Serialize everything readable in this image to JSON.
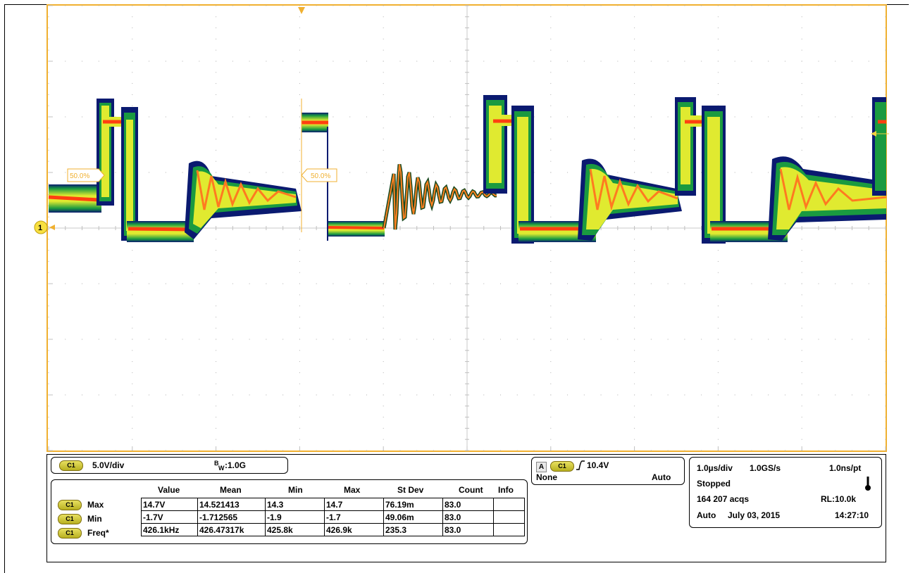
{
  "channel": {
    "badge": "C1",
    "scale": "5.0V/div",
    "bandwidth_prefix": "B",
    "bandwidth_sub": "W",
    "bandwidth_value": ":1.0G",
    "marker_label": "1"
  },
  "waveform": {
    "ref_level_left": "50.0%",
    "ref_level_mid": "50.0%",
    "color_trace": "#ff4010",
    "color_persist": "#e0ea30",
    "color_edge": "#0a1a70",
    "color_grid_border": "#f0b030"
  },
  "measurements": {
    "headers": [
      "Value",
      "Mean",
      "Min",
      "Max",
      "St Dev",
      "Count",
      "Info"
    ],
    "rows": [
      {
        "badge": "C1",
        "label": "Max",
        "cells": [
          "14.7V",
          "14.521413",
          "14.3",
          "14.7",
          "76.19m",
          "83.0",
          ""
        ]
      },
      {
        "badge": "C1",
        "label": "Min",
        "cells": [
          "-1.7V",
          "-1.712565",
          "-1.9",
          "-1.7",
          "49.06m",
          "83.0",
          ""
        ]
      },
      {
        "badge": "C1",
        "label": "Freq*",
        "cells": [
          "426.1kHz",
          "426.47317k",
          "425.8k",
          "426.9k",
          "235.3",
          "83.0",
          ""
        ]
      }
    ]
  },
  "trigger": {
    "mode_letter": "A",
    "badge": "C1",
    "slope_icon": "rising-edge-icon",
    "level": "10.4V",
    "coupling": "None",
    "sweep": "Auto"
  },
  "acquisition": {
    "timebase": "1.0µs/div",
    "sample_rate": "1.0GS/s",
    "resolution": "1.0ns/pt",
    "state": "Stopped",
    "acqs": "164 207 acqs",
    "record_length": "RL:10.0k",
    "mode": "Auto",
    "date": "July 03, 2015",
    "time": "14:27:10",
    "thermometer_icon": "thermometer-icon"
  }
}
